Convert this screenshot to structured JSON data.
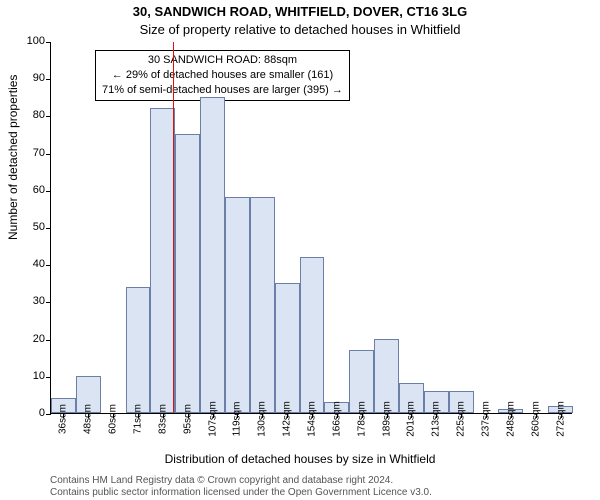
{
  "chart": {
    "type": "histogram",
    "title_line1": "30, SANDWICH ROAD, WHITFIELD, DOVER, CT16 3LG",
    "title_line2": "Size of property relative to detached houses in Whitfield",
    "ylabel": "Number of detached properties",
    "xlabel": "Distribution of detached houses by size in Whitfield",
    "ylim": [
      0,
      100
    ],
    "ytick_step": 10,
    "bar_fill": "#dbe4f3",
    "bar_stroke": "#6b7fa8",
    "background": "#ffffff",
    "refline_color": "#e01010",
    "refline_x": 88,
    "categories": [
      "36sqm",
      "48sqm",
      "60sqm",
      "71sqm",
      "83sqm",
      "95sqm",
      "107sqm",
      "119sqm",
      "130sqm",
      "142sqm",
      "154sqm",
      "166sqm",
      "178sqm",
      "189sqm",
      "201sqm",
      "213sqm",
      "225sqm",
      "237sqm",
      "248sqm",
      "260sqm",
      "272sqm"
    ],
    "values": [
      4,
      10,
      0,
      34,
      82,
      75,
      85,
      58,
      58,
      35,
      42,
      3,
      17,
      20,
      8,
      6,
      6,
      0,
      1,
      0,
      2
    ],
    "annotation": {
      "line1": "30 SANDWICH ROAD: 88sqm",
      "line2": "← 29% of detached houses are smaller (161)",
      "line3": "71% of semi-detached houses are larger (395) →"
    },
    "title_fontsize": 13,
    "label_fontsize": 12,
    "tick_fontsize": 11
  },
  "footer": {
    "line1": "Contains HM Land Registry data © Crown copyright and database right 2024.",
    "line2": "Contains public sector information licensed under the Open Government Licence v3.0."
  }
}
